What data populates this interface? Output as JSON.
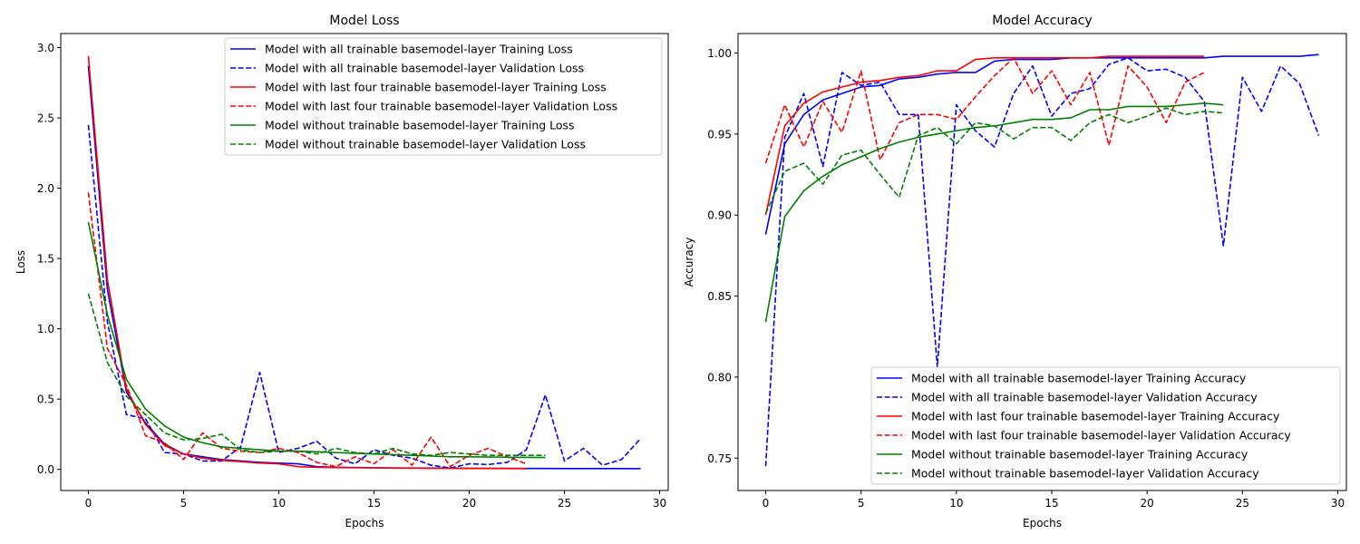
{
  "chart_data": [
    {
      "type": "line",
      "title": "Model Loss",
      "xlabel": "Epochs",
      "ylabel": "Loss",
      "xlim": [
        -1.45,
        30.45
      ],
      "ylim": [
        -0.15,
        3.1
      ],
      "xticks": [
        0,
        5,
        10,
        15,
        20,
        25,
        30
      ],
      "yticks": [
        0.0,
        0.5,
        1.0,
        1.5,
        2.0,
        2.5,
        3.0
      ],
      "ytick_labels": [
        "0.0",
        "0.5",
        "1.0",
        "1.5",
        "2.0",
        "2.5",
        "3.0"
      ],
      "grid": false,
      "legend_position": "upper right",
      "series": [
        {
          "name": "Model with all trainable basemodel-layer Training Loss",
          "color": "#0000ff",
          "dash": "solid",
          "values": [
            2.87,
            1.28,
            0.55,
            0.33,
            0.18,
            0.11,
            0.09,
            0.07,
            0.06,
            0.05,
            0.045,
            0.04,
            0.02,
            0.015,
            0.013,
            0.012,
            0.01,
            0.01,
            0.009,
            0.009,
            0.008,
            0.008,
            0.008,
            0.007,
            0.007,
            0.006,
            0.006,
            0.006,
            0.006,
            0.005
          ]
        },
        {
          "name": "Model with all trainable basemodel-layer Validation Loss",
          "color": "#0000ff",
          "dash": "dashed",
          "values": [
            2.45,
            1.05,
            0.39,
            0.36,
            0.12,
            0.11,
            0.06,
            0.06,
            0.16,
            0.69,
            0.12,
            0.15,
            0.2,
            0.08,
            0.04,
            0.14,
            0.1,
            0.08,
            0.03,
            0.01,
            0.04,
            0.035,
            0.05,
            0.14,
            0.53,
            0.06,
            0.15,
            0.03,
            0.07,
            0.22
          ]
        },
        {
          "name": "Model with last four trainable basemodel-layer Training Loss",
          "color": "#ff0000",
          "dash": "solid",
          "values": [
            2.94,
            1.35,
            0.57,
            0.32,
            0.17,
            0.11,
            0.08,
            0.065,
            0.055,
            0.045,
            0.04,
            0.02,
            0.015,
            0.013,
            0.012,
            0.011,
            0.01,
            0.009,
            0.008,
            0.008,
            0.007,
            0.007,
            0.006,
            0.005
          ]
        },
        {
          "name": "Model with last four trainable basemodel-layer Validation Loss",
          "color": "#ff0000",
          "dash": "dashed",
          "values": [
            1.97,
            0.86,
            0.6,
            0.24,
            0.19,
            0.07,
            0.26,
            0.15,
            0.13,
            0.12,
            0.15,
            0.12,
            0.05,
            0.02,
            0.09,
            0.04,
            0.14,
            0.03,
            0.23,
            0.02,
            0.1,
            0.15,
            0.09,
            0.04
          ]
        },
        {
          "name": "Model without trainable basemodel-layer Training Loss",
          "color": "#008000",
          "dash": "solid",
          "values": [
            1.76,
            1.1,
            0.64,
            0.43,
            0.31,
            0.23,
            0.19,
            0.16,
            0.15,
            0.14,
            0.13,
            0.13,
            0.125,
            0.12,
            0.115,
            0.11,
            0.105,
            0.1,
            0.095,
            0.09,
            0.09,
            0.088,
            0.087,
            0.086,
            0.085
          ]
        },
        {
          "name": "Model without trainable basemodel-layer Validation Loss",
          "color": "#008000",
          "dash": "dashed",
          "values": [
            1.25,
            0.76,
            0.52,
            0.39,
            0.26,
            0.21,
            0.22,
            0.25,
            0.14,
            0.12,
            0.13,
            0.13,
            0.11,
            0.15,
            0.12,
            0.11,
            0.15,
            0.11,
            0.1,
            0.12,
            0.11,
            0.1,
            0.1,
            0.1,
            0.1
          ]
        }
      ]
    },
    {
      "type": "line",
      "title": "Model Accuracy",
      "xlabel": "Epochs",
      "ylabel": "Accuracy",
      "xlim": [
        -1.45,
        30.45
      ],
      "ylim": [
        0.73,
        1.012
      ],
      "xticks": [
        0,
        5,
        10,
        15,
        20,
        25,
        30
      ],
      "yticks": [
        0.75,
        0.8,
        0.85,
        0.9,
        0.95,
        1.0
      ],
      "ytick_labels": [
        "0.75",
        "0.80",
        "0.85",
        "0.90",
        "0.95",
        "1.00"
      ],
      "grid": false,
      "legend_position": "lower right",
      "series": [
        {
          "name": "Model with all trainable basemodel-layer Training Accuracy",
          "color": "#0000ff",
          "dash": "solid",
          "values": [
            0.888,
            0.944,
            0.962,
            0.971,
            0.975,
            0.979,
            0.98,
            0.984,
            0.985,
            0.987,
            0.988,
            0.988,
            0.995,
            0.996,
            0.996,
            0.996,
            0.997,
            0.997,
            0.997,
            0.997,
            0.997,
            0.997,
            0.997,
            0.997,
            0.998,
            0.998,
            0.998,
            0.998,
            0.998,
            0.999
          ]
        },
        {
          "name": "Model with all trainable basemodel-layer Validation Accuracy",
          "color": "#0000ff",
          "dash": "dashed",
          "values": [
            0.745,
            0.948,
            0.975,
            0.93,
            0.988,
            0.98,
            0.982,
            0.962,
            0.962,
            0.806,
            0.968,
            0.952,
            0.942,
            0.975,
            0.992,
            0.961,
            0.975,
            0.978,
            0.993,
            0.997,
            0.989,
            0.99,
            0.985,
            0.97,
            0.881,
            0.985,
            0.964,
            0.992,
            0.981,
            0.949
          ]
        },
        {
          "name": "Model with last four trainable basemodel-layer Training Accuracy",
          "color": "#ff0000",
          "dash": "solid",
          "values": [
            0.9,
            0.955,
            0.969,
            0.976,
            0.979,
            0.982,
            0.983,
            0.985,
            0.986,
            0.989,
            0.989,
            0.996,
            0.997,
            0.997,
            0.997,
            0.997,
            0.997,
            0.997,
            0.998,
            0.998,
            0.998,
            0.998,
            0.998,
            0.998
          ]
        },
        {
          "name": "Model with last four trainable basemodel-layer Validation Accuracy",
          "color": "#ff0000",
          "dash": "dashed",
          "values": [
            0.932,
            0.968,
            0.942,
            0.97,
            0.951,
            0.989,
            0.934,
            0.957,
            0.962,
            0.962,
            0.959,
            0.973,
            0.986,
            0.997,
            0.975,
            0.989,
            0.968,
            0.988,
            0.943,
            0.992,
            0.979,
            0.957,
            0.982,
            0.988
          ]
        },
        {
          "name": "Model without trainable basemodel-layer Training Accuracy",
          "color": "#008000",
          "dash": "solid",
          "values": [
            0.834,
            0.899,
            0.915,
            0.924,
            0.931,
            0.936,
            0.941,
            0.945,
            0.948,
            0.95,
            0.952,
            0.954,
            0.955,
            0.957,
            0.959,
            0.959,
            0.96,
            0.965,
            0.965,
            0.967,
            0.967,
            0.967,
            0.968,
            0.969,
            0.968
          ]
        },
        {
          "name": "Model without trainable basemodel-layer Validation Accuracy",
          "color": "#008000",
          "dash": "dashed",
          "values": [
            0.901,
            0.927,
            0.932,
            0.919,
            0.937,
            0.94,
            0.925,
            0.911,
            0.949,
            0.954,
            0.944,
            0.957,
            0.955,
            0.947,
            0.954,
            0.954,
            0.946,
            0.957,
            0.962,
            0.957,
            0.961,
            0.966,
            0.962,
            0.964,
            0.963
          ]
        }
      ]
    }
  ]
}
